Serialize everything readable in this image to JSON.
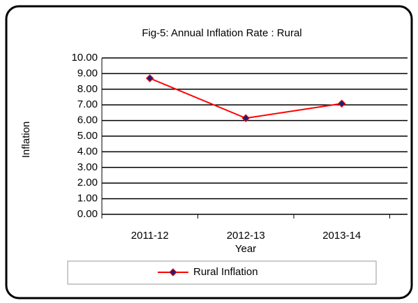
{
  "chart_data": {
    "type": "line",
    "title": "Fig-5: Annual Inflation Rate :  Rural",
    "categories": [
      "2011-12",
      "2012-13",
      "2013-14"
    ],
    "series": [
      {
        "name": "Rural Inflation",
        "color": "#ff0000",
        "marker_color": "#1f1f7a",
        "values": [
          8.7,
          6.15,
          7.08
        ]
      }
    ],
    "ylim": [
      0,
      10
    ],
    "yticks": [
      {
        "value": 0,
        "label": "0.00"
      },
      {
        "value": 1,
        "label": "1.00"
      },
      {
        "value": 2,
        "label": "2.00"
      },
      {
        "value": 3,
        "label": "3.00"
      },
      {
        "value": 4,
        "label": "4.00"
      },
      {
        "value": 5,
        "label": "5.00"
      },
      {
        "value": 6,
        "label": "6.00"
      },
      {
        "value": 7,
        "label": "7.00"
      },
      {
        "value": 8,
        "label": "8.00"
      },
      {
        "value": 9,
        "label": "9.00"
      },
      {
        "value": 10,
        "label": "10.00"
      }
    ],
    "xlabel": "Year",
    "ylabel": "Inflation",
    "grid": true,
    "legend": "bottom"
  }
}
